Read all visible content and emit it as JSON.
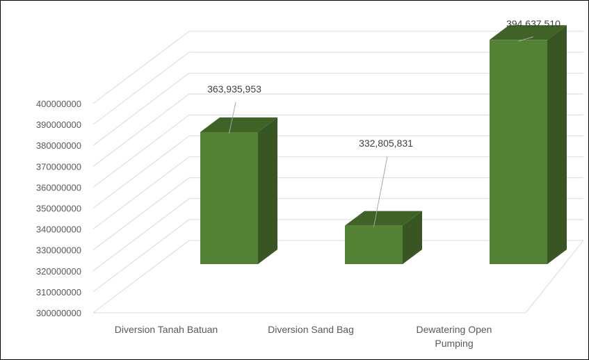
{
  "chart_data": {
    "type": "bar",
    "style": "3d-column",
    "categories": [
      "Diversion Tanah Batuan",
      "Diversion Sand Bag",
      "Dewatering Open Pumping"
    ],
    "category_lines": [
      [
        "Diversion Tanah Batuan"
      ],
      [
        "Diversion Sand Bag"
      ],
      [
        "Dewatering Open",
        "Pumping"
      ]
    ],
    "values": [
      363935953,
      332805831,
      394637510
    ],
    "data_labels": [
      "363,935,953",
      "332,805,831",
      "394,637,510"
    ],
    "y_ticks": [
      "300000000",
      "310000000",
      "320000000",
      "330000000",
      "340000000",
      "350000000",
      "360000000",
      "370000000",
      "380000000",
      "390000000",
      "400000000"
    ],
    "ylim": [
      300000000,
      400000000
    ],
    "grid": true,
    "legend": "none",
    "colors": {
      "front": "#548235",
      "side": "#375623",
      "top": "#3f6327",
      "grid": "#d9d9d9",
      "axis_text": "#595959"
    }
  }
}
